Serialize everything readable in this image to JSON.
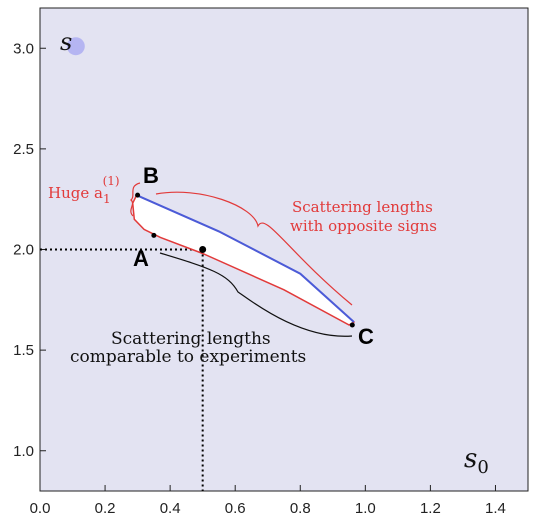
{
  "chart_data": {
    "type": "scatter",
    "title": "",
    "xlabel": "s0",
    "ylabel": "s",
    "xlim": [
      0.0,
      1.5
    ],
    "ylim": [
      0.8,
      3.2
    ],
    "xticks": [
      0.0,
      0.2,
      0.4,
      0.6,
      0.8,
      1.0,
      1.2,
      1.4
    ],
    "xtick_labels": [
      "0.0",
      "0.2",
      "0.4",
      "0.6",
      "0.8",
      "1.0",
      "1.2",
      "1.4"
    ],
    "yticks": [
      1.0,
      1.5,
      2.0,
      2.5,
      3.0
    ],
    "ytick_labels": [
      "1.0",
      "1.5",
      "2.0",
      "2.5",
      "3.0"
    ],
    "background_color": "#e3e3f2",
    "accent_red": "#e23a3a",
    "accent_blue": "#4b5bd8",
    "region": {
      "name": "allowed-region",
      "fill": "#ffffff",
      "outline": [
        [
          0.297,
          2.27
        ],
        [
          0.55,
          2.09
        ],
        [
          0.8,
          1.88
        ],
        [
          0.965,
          1.64
        ],
        [
          0.95,
          1.625
        ],
        [
          0.75,
          1.8
        ],
        [
          0.5,
          1.98
        ],
        [
          0.37,
          2.06
        ],
        [
          0.32,
          2.1
        ],
        [
          0.29,
          2.15
        ],
        [
          0.285,
          2.23
        ]
      ]
    },
    "points": [
      {
        "name": "A",
        "x": 0.35,
        "y": 2.07
      },
      {
        "name": "B",
        "x": 0.3,
        "y": 2.27
      },
      {
        "name": "C",
        "x": 0.96,
        "y": 1.625
      },
      {
        "name": "marked",
        "x": 0.5,
        "y": 2.0
      }
    ],
    "dotted_guides": {
      "x": 0.5,
      "y": 2.0
    },
    "decor_circle": {
      "x": 0.11,
      "y": 3.01
    }
  },
  "labels": {
    "corner_a": "A",
    "corner_b": "B",
    "corner_c": "C",
    "y_axis_symbol": "s",
    "x_axis_symbol_base": "s",
    "x_axis_symbol_sub": "0",
    "huge_prefix": "Huge a",
    "huge_sub": "1",
    "huge_sup": "(1)",
    "opposite_line1": "Scattering lengths",
    "opposite_line2": "with opposite signs",
    "comparable_line1": "Scattering lengths",
    "comparable_line2": "comparable to experiments"
  }
}
